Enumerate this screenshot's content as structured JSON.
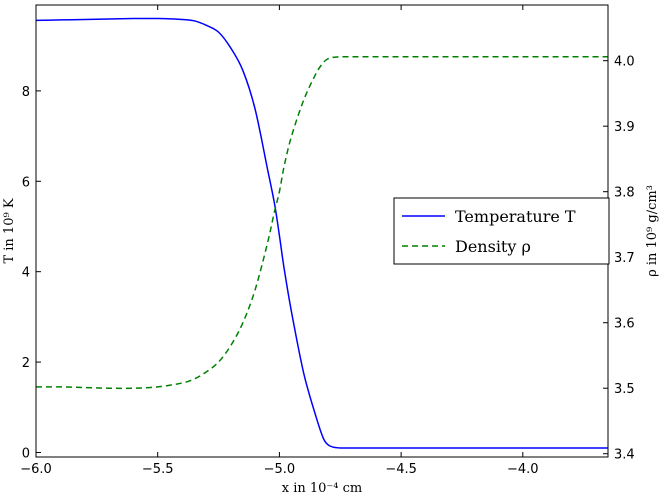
{
  "chart_data": {
    "type": "line",
    "xlabel": "x in 10⁻⁴ cm",
    "ylabel_left": "T in 10⁹ K",
    "ylabel_right": "ρ in 10⁹ g/cm³",
    "xlim": [
      -6.0,
      -3.65
    ],
    "ylim_left": [
      -0.1,
      9.9
    ],
    "ylim_right": [
      3.395,
      4.085
    ],
    "x_ticks": [
      -6.0,
      -5.5,
      -5.0,
      -4.5,
      -4.0
    ],
    "x_tick_labels": [
      "−6.0",
      "−5.5",
      "−5.0",
      "−4.5",
      "−4.0"
    ],
    "y_left_ticks": [
      0,
      2,
      4,
      6,
      8
    ],
    "y_left_tick_labels": [
      "0",
      "2",
      "4",
      "6",
      "8"
    ],
    "y_right_ticks": [
      3.4,
      3.5,
      3.6,
      3.7,
      3.8,
      3.9,
      4.0
    ],
    "y_right_tick_labels": [
      "3.4",
      "3.5",
      "3.6",
      "3.7",
      "3.8",
      "3.9",
      "4.0"
    ],
    "legend_position": "center-right",
    "grid": false,
    "series": [
      {
        "name": "Temperature T",
        "axis": "left",
        "color": "#0000ff",
        "style": "solid",
        "x": [
          -6.0,
          -5.9,
          -5.8,
          -5.7,
          -5.6,
          -5.5,
          -5.4,
          -5.35,
          -5.3,
          -5.25,
          -5.2,
          -5.15,
          -5.1,
          -5.05,
          -5.02,
          -5.0,
          -4.98,
          -4.95,
          -4.9,
          -4.85,
          -4.82,
          -4.8,
          -4.78,
          -4.75,
          -4.7,
          -4.6,
          -4.5,
          -4.4,
          -4.2,
          -4.0,
          -3.8,
          -3.65
        ],
        "values": [
          9.56,
          9.57,
          9.58,
          9.59,
          9.6,
          9.6,
          9.58,
          9.55,
          9.45,
          9.3,
          8.95,
          8.45,
          7.6,
          6.3,
          5.5,
          4.8,
          4.05,
          3.1,
          1.75,
          0.8,
          0.32,
          0.17,
          0.12,
          0.1,
          0.1,
          0.1,
          0.1,
          0.1,
          0.1,
          0.1,
          0.1,
          0.1
        ]
      },
      {
        "name": "Density ρ",
        "axis": "right",
        "color": "#008000",
        "style": "dashed",
        "x": [
          -6.0,
          -5.9,
          -5.8,
          -5.7,
          -5.6,
          -5.5,
          -5.4,
          -5.35,
          -5.3,
          -5.25,
          -5.2,
          -5.15,
          -5.1,
          -5.05,
          -5.02,
          -5.0,
          -4.98,
          -4.95,
          -4.9,
          -4.85,
          -4.82,
          -4.8,
          -4.78,
          -4.75,
          -4.7,
          -4.6,
          -4.5,
          -4.4,
          -4.2,
          -4.0,
          -3.8,
          -3.65
        ],
        "values": [
          3.502,
          3.502,
          3.501,
          3.5,
          3.5,
          3.502,
          3.508,
          3.514,
          3.525,
          3.54,
          3.565,
          3.6,
          3.65,
          3.72,
          3.77,
          3.8,
          3.84,
          3.885,
          3.94,
          3.98,
          3.997,
          4.003,
          4.005,
          4.006,
          4.006,
          4.006,
          4.006,
          4.006,
          4.006,
          4.006,
          4.006,
          4.006
        ]
      }
    ]
  }
}
